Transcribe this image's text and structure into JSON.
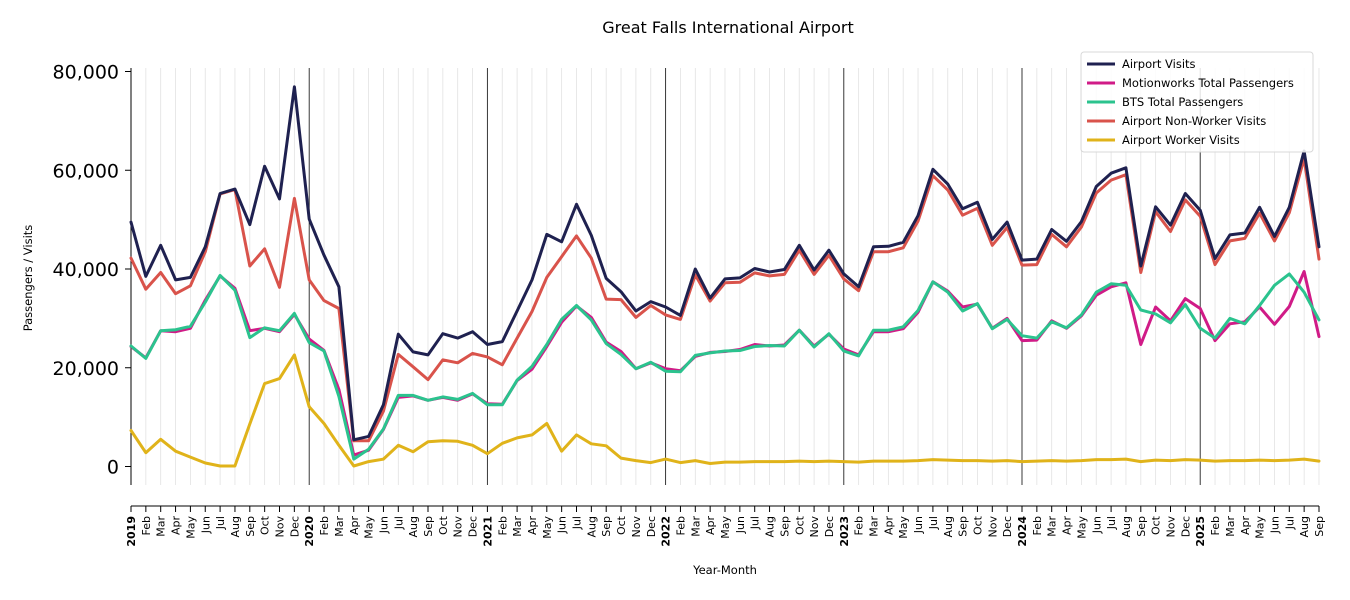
{
  "chart_data": {
    "type": "line",
    "title": "Great Falls International Airport",
    "xlabel": "Year-Month",
    "ylabel": "Passengers / Visits",
    "ylim": [
      -4000,
      80000
    ],
    "yticks": [
      0,
      20000,
      40000,
      60000,
      80000
    ],
    "ytick_labels": [
      "0",
      "20,000",
      "40,000",
      "60,000",
      "80,000"
    ],
    "legend_position": "top-right",
    "grid": "vertical monthly gridlines, darker line at each January",
    "x": [
      "2019",
      "Feb",
      "Mar",
      "Apr",
      "May",
      "Jun",
      "Jul",
      "Aug",
      "Sep",
      "Oct",
      "Nov",
      "Dec",
      "2020",
      "Feb",
      "Mar",
      "Apr",
      "May",
      "Jun",
      "Jul",
      "Aug",
      "Sep",
      "Oct",
      "Nov",
      "Dec",
      "2021",
      "Feb",
      "Mar",
      "Apr",
      "May",
      "Jun",
      "Jul",
      "Aug",
      "Sep",
      "Oct",
      "Nov",
      "Dec",
      "2022",
      "Feb",
      "Mar",
      "Apr",
      "May",
      "Jun",
      "Jul",
      "Aug",
      "Sep",
      "Oct",
      "Nov",
      "Dec",
      "2023",
      "Feb",
      "Mar",
      "Apr",
      "May",
      "Jun",
      "Jul",
      "Aug",
      "Sep",
      "Oct",
      "Nov",
      "Dec",
      "2024",
      "Feb",
      "Mar",
      "Apr",
      "May",
      "Jun",
      "Jul",
      "Aug",
      "Sep",
      "Oct",
      "Nov",
      "Dec",
      "2025",
      "Feb",
      "Mar",
      "Apr",
      "May",
      "Jun",
      "Jul",
      "Aug",
      "Sep"
    ],
    "series": [
      {
        "name": "Airport Visits",
        "color": "#1f2150",
        "values": [
          49500,
          38500,
          44800,
          37800,
          38300,
          44500,
          55300,
          56200,
          49000,
          60800,
          54200,
          76900,
          50100,
          42800,
          36400,
          5400,
          6100,
          12500,
          26800,
          23200,
          22600,
          26900,
          26000,
          27300,
          24700,
          25300,
          31500,
          37800,
          47000,
          45500,
          53100,
          46800,
          38100,
          35400,
          31500,
          33400,
          32300,
          30600,
          40000,
          34100,
          38000,
          38200,
          40100,
          39400,
          39900,
          44800,
          39800,
          43800,
          39000,
          36400,
          44500,
          44600,
          45400,
          50800,
          60200,
          57200,
          52200,
          53500,
          46000,
          49500,
          41800,
          42000,
          48000,
          45600,
          49600,
          56700,
          59400,
          60500,
          40600,
          52600,
          48900,
          55300,
          51900,
          42100,
          46900,
          47300,
          52500,
          46600,
          52500,
          63900,
          44500
        ]
      },
      {
        "name": "Motionworks Total Passengers",
        "color": "#d01b87",
        "values": [
          24300,
          22000,
          27500,
          27300,
          28000,
          33700,
          38600,
          36100,
          27500,
          28000,
          27300,
          30800,
          25800,
          23500,
          15600,
          2300,
          3300,
          7500,
          14000,
          14300,
          13400,
          14000,
          13400,
          14700,
          12700,
          12600,
          17400,
          19700,
          24300,
          29200,
          32500,
          30200,
          25200,
          23300,
          19800,
          21000,
          19800,
          19400,
          22300,
          23100,
          23300,
          23700,
          24700,
          24400,
          24600,
          27600,
          24400,
          26800,
          23800,
          22600,
          27300,
          27300,
          27900,
          31200,
          37400,
          35500,
          32300,
          32900,
          28000,
          30000,
          25500,
          25600,
          29500,
          28000,
          30500,
          34700,
          36400,
          37200,
          24700,
          32300,
          29500,
          34000,
          32000,
          25500,
          28900,
          29300,
          32300,
          28800,
          32400,
          39500,
          26300
        ]
      },
      {
        "name": "BTS Total Passengers",
        "color": "#2bc38e",
        "values": [
          24400,
          21900,
          27500,
          27700,
          28400,
          33300,
          38700,
          35700,
          26100,
          28100,
          27500,
          31000,
          25100,
          23400,
          14200,
          1500,
          3500,
          7600,
          14400,
          14400,
          13400,
          14100,
          13600,
          14800,
          12500,
          12500,
          17500,
          20300,
          24700,
          29800,
          32600,
          29700,
          24900,
          22700,
          19800,
          21100,
          19300,
          19200,
          22500,
          23000,
          23400,
          23500,
          24300,
          24500,
          24400,
          27600,
          24200,
          26900,
          23400,
          22400,
          27600,
          27600,
          28300,
          31600,
          37400,
          35300,
          31500,
          33000,
          27900,
          29800,
          26500,
          26000,
          29300,
          28100,
          30700,
          35300,
          37000,
          36700,
          31700,
          30900,
          29100,
          32800,
          28000,
          26000,
          30000,
          28900,
          32600,
          36700,
          39000,
          35300,
          29700
        ]
      },
      {
        "name": "Airport Non-Worker Visits",
        "color": "#d9534b",
        "values": [
          42200,
          35900,
          39300,
          35000,
          36600,
          43500,
          55200,
          56100,
          40600,
          44100,
          36300,
          54300,
          37800,
          33600,
          32000,
          5200,
          5200,
          11200,
          22700,
          20200,
          17600,
          21600,
          21000,
          22900,
          22200,
          20600,
          26000,
          31400,
          38300,
          42500,
          46700,
          42200,
          33900,
          33800,
          30200,
          32600,
          30700,
          29800,
          38800,
          33500,
          37200,
          37300,
          39200,
          38600,
          38900,
          43800,
          38900,
          42800,
          38000,
          35600,
          43500,
          43500,
          44300,
          49700,
          58900,
          56000,
          50900,
          52300,
          44800,
          48400,
          40800,
          40900,
          47000,
          44500,
          48500,
          55400,
          58000,
          59100,
          39300,
          51600,
          47600,
          54000,
          50700,
          40900,
          45700,
          46200,
          51300,
          45700,
          51400,
          62400,
          42000
        ]
      },
      {
        "name": "Airport Worker Visits",
        "color": "#e0b31a",
        "values": [
          7300,
          2800,
          5500,
          3100,
          1900,
          700,
          100,
          100,
          8600,
          16800,
          17800,
          22600,
          12100,
          8700,
          4300,
          100,
          1000,
          1500,
          4300,
          3000,
          5000,
          5200,
          5100,
          4300,
          2600,
          4700,
          5800,
          6400,
          8700,
          3100,
          6400,
          4600,
          4200,
          1700,
          1200,
          800,
          1500,
          800,
          1200,
          600,
          900,
          900,
          1000,
          1000,
          1000,
          1100,
          1000,
          1100,
          1000,
          900,
          1100,
          1100,
          1100,
          1200,
          1400,
          1300,
          1200,
          1200,
          1100,
          1200,
          1000,
          1100,
          1200,
          1100,
          1200,
          1400,
          1400,
          1500,
          1000,
          1300,
          1200,
          1400,
          1300,
          1100,
          1200,
          1200,
          1300,
          1200,
          1300,
          1500,
          1100
        ]
      }
    ]
  }
}
